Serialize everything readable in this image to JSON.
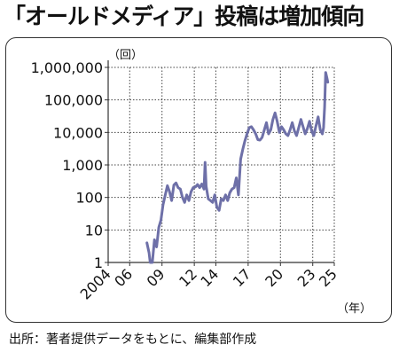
{
  "title": "「オールドメディア」投稿は増加傾向",
  "source": "出所：著者提供データをもとに、編集部作成",
  "chart_data": {
    "type": "line",
    "y_scale": "log",
    "y_unit_label": "（回）",
    "x_unit_label": "（年）",
    "ylim": [
      1,
      1000000
    ],
    "xlim": [
      2004,
      2025
    ],
    "grid": true,
    "y_ticks": [
      {
        "value": 1,
        "label": "1"
      },
      {
        "value": 10,
        "label": "10"
      },
      {
        "value": 100,
        "label": "100"
      },
      {
        "value": 1000,
        "label": "1,000"
      },
      {
        "value": 10000,
        "label": "10,000"
      },
      {
        "value": 100000,
        "label": "100,000"
      },
      {
        "value": 1000000,
        "label": "1,000,000"
      }
    ],
    "x_ticks": [
      {
        "value": 2004,
        "label": "2004"
      },
      {
        "value": 2006,
        "label": "06"
      },
      {
        "value": 2009,
        "label": "09"
      },
      {
        "value": 2012,
        "label": "12"
      },
      {
        "value": 2014,
        "label": "14"
      },
      {
        "value": 2017,
        "label": "17"
      },
      {
        "value": 2020,
        "label": "20"
      },
      {
        "value": 2023,
        "label": "23"
      },
      {
        "value": 2025,
        "label": "25"
      }
    ],
    "series": [
      {
        "color": "#6e70a8",
        "x": [
          2007.6,
          2007.8,
          2007.9,
          2008.1,
          2008.3,
          2008.5,
          2008.7,
          2008.9,
          2009.1,
          2009.3,
          2009.5,
          2009.7,
          2009.9,
          2010.1,
          2010.3,
          2010.5,
          2010.7,
          2010.9,
          2011.1,
          2011.3,
          2011.5,
          2011.7,
          2011.9,
          2012.1,
          2012.3,
          2012.5,
          2012.7,
          2012.9,
          2013.0,
          2013.1,
          2013.3,
          2013.5,
          2013.7,
          2013.9,
          2014.1,
          2014.3,
          2014.5,
          2014.7,
          2014.9,
          2015.1,
          2015.3,
          2015.5,
          2015.7,
          2015.9,
          2016.1,
          2016.3,
          2016.5,
          2016.7,
          2016.9,
          2017.1,
          2017.3,
          2017.5,
          2017.7,
          2017.9,
          2018.1,
          2018.3,
          2018.5,
          2018.7,
          2018.9,
          2019.1,
          2019.3,
          2019.5,
          2019.7,
          2019.9,
          2020.1,
          2020.3,
          2020.5,
          2020.7,
          2020.9,
          2021.1,
          2021.3,
          2021.5,
          2021.7,
          2021.9,
          2022.1,
          2022.3,
          2022.5,
          2022.7,
          2022.9,
          2023.1,
          2023.3,
          2023.5,
          2023.7,
          2023.9,
          2024.0,
          2024.1,
          2024.2,
          2024.3,
          2024.4
        ],
        "values": [
          4,
          2,
          1,
          1,
          5,
          3,
          12,
          20,
          60,
          120,
          230,
          150,
          80,
          240,
          280,
          200,
          180,
          100,
          70,
          120,
          80,
          150,
          200,
          210,
          250,
          200,
          260,
          180,
          1200,
          220,
          90,
          80,
          70,
          120,
          50,
          40,
          90,
          80,
          120,
          80,
          140,
          180,
          200,
          400,
          120,
          1500,
          3000,
          5500,
          9000,
          14000,
          15000,
          12000,
          9000,
          6000,
          5800,
          7000,
          12000,
          20000,
          9000,
          12000,
          25000,
          40000,
          22000,
          10000,
          15000,
          12000,
          9000,
          8000,
          12000,
          20000,
          11000,
          8000,
          14000,
          25000,
          15000,
          9000,
          13000,
          22000,
          11000,
          8000,
          16000,
          30000,
          12000,
          9000,
          14000,
          60000,
          700000,
          500000,
          350000
        ]
      }
    ]
  }
}
